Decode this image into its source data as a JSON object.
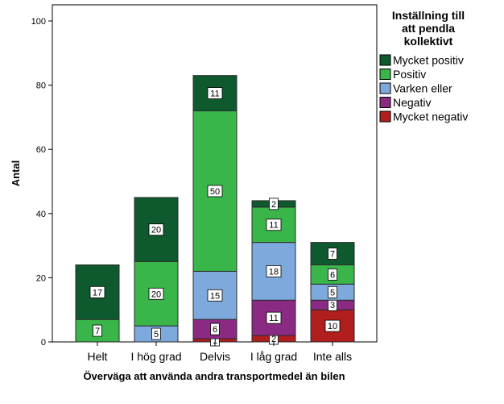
{
  "chart_data": {
    "type": "bar",
    "stacked": true,
    "xlabel": "Överväga att använda andra transportmedel än bilen",
    "ylabel": "Antal",
    "ylim": [
      0,
      100
    ],
    "yticks": [
      0,
      20,
      40,
      60,
      80,
      100
    ],
    "categories": [
      "Helt",
      "I hög grad",
      "Delvis",
      "I låg grad",
      "Inte alls"
    ],
    "legend_title": [
      "Inställning till",
      "att pendla",
      "kollektivt"
    ],
    "legend_position": "right",
    "series": [
      {
        "name": "Mycket negativ",
        "color": "#b01e1e",
        "values": [
          0,
          0,
          1,
          2,
          10
        ],
        "labels": [
          "",
          "",
          "1",
          "2",
          "10"
        ]
      },
      {
        "name": "Negativ",
        "color": "#8a2a82",
        "values": [
          0,
          0,
          6,
          11,
          3
        ],
        "labels": [
          "",
          "",
          "6",
          "11",
          "3"
        ]
      },
      {
        "name": "Varken eller",
        "color": "#7ea9dc",
        "values": [
          0,
          5,
          15,
          18,
          5
        ],
        "labels": [
          "",
          "5",
          "15",
          "18",
          "5"
        ]
      },
      {
        "name": "Positiv",
        "color": "#3ab54a",
        "values": [
          7,
          20,
          50,
          11,
          6
        ],
        "labels": [
          "7",
          "20",
          "50",
          "11",
          "6"
        ]
      },
      {
        "name": "Mycket positiv",
        "color": "#0e5a2e",
        "values": [
          17,
          20,
          11,
          2,
          7
        ],
        "labels": [
          "17",
          "20",
          "11",
          "2",
          "7"
        ]
      }
    ],
    "legend_order": [
      "Mycket positiv",
      "Positiv",
      "Varken eller",
      "Negativ",
      "Mycket negativ"
    ]
  }
}
